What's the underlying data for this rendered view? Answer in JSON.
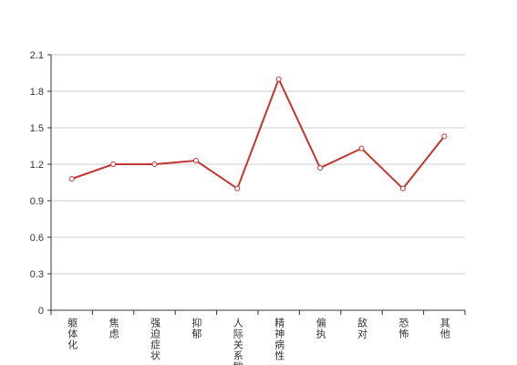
{
  "chart_data": {
    "type": "line",
    "categories": [
      "躯体化",
      "焦虑",
      "强迫症状",
      "抑郁",
      "人际关系敏感",
      "精神病性",
      "偏执",
      "敌对",
      "恐怖",
      "其他"
    ],
    "series": [
      {
        "color": "#c23531",
        "values": [
          1.08,
          1.2,
          1.2,
          1.23,
          1.0,
          1.9,
          1.17,
          1.33,
          1.0,
          1.43
        ]
      }
    ],
    "ylim": [
      0,
      2.1
    ],
    "yticks": [
      0,
      0.3,
      0.6,
      0.9,
      1.2,
      1.5,
      1.8,
      2.1
    ],
    "grid": true
  }
}
